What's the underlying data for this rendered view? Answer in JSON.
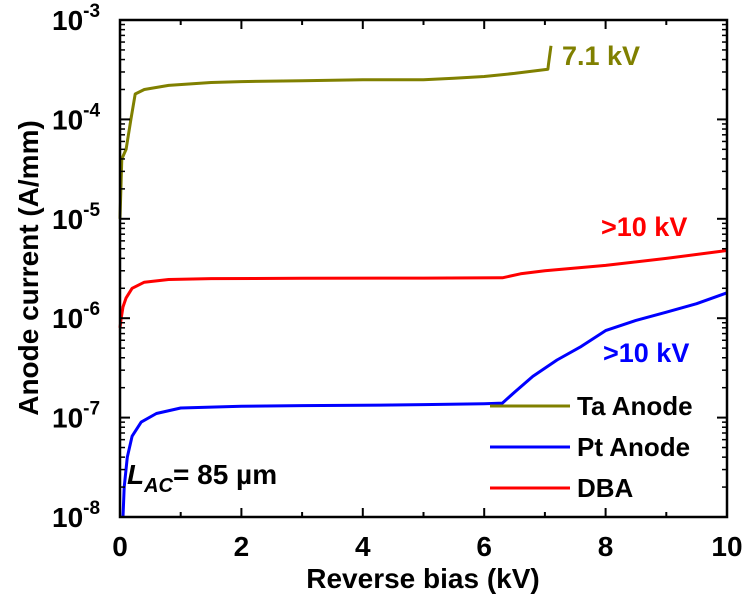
{
  "chart_data": {
    "type": "line",
    "title": "",
    "xlabel": "Reverse bias (kV)",
    "ylabel": "Anode current (A/mm)",
    "xlim": [
      0,
      10
    ],
    "ylim": [
      1e-08,
      0.001
    ],
    "y_scale": "log",
    "grid": false,
    "legend_position": "bottom-right",
    "x_ticks": [
      "0",
      "2",
      "4",
      "6",
      "8",
      "10"
    ],
    "y_ticks": [
      {
        "base": "10",
        "exp": "-8"
      },
      {
        "base": "10",
        "exp": "-7"
      },
      {
        "base": "10",
        "exp": "-6"
      },
      {
        "base": "10",
        "exp": "-5"
      },
      {
        "base": "10",
        "exp": "-4"
      },
      {
        "base": "10",
        "exp": "-3"
      }
    ],
    "series": [
      {
        "name": "Ta Anode",
        "color": "#808000",
        "points": [
          [
            0.0,
            1e-05
          ],
          [
            0.03,
            4e-05
          ],
          [
            0.1,
            5e-05
          ],
          [
            0.18,
            0.0001
          ],
          [
            0.25,
            0.00018
          ],
          [
            0.4,
            0.0002
          ],
          [
            0.8,
            0.00022
          ],
          [
            1.5,
            0.000235
          ],
          [
            2.0,
            0.00024
          ],
          [
            3.0,
            0.000245
          ],
          [
            4.0,
            0.00025
          ],
          [
            5.0,
            0.00025
          ],
          [
            5.5,
            0.00026
          ],
          [
            6.0,
            0.00027
          ],
          [
            6.5,
            0.00029
          ],
          [
            7.05,
            0.00032
          ],
          [
            7.06,
            0.00036
          ],
          [
            7.08,
            0.00045
          ],
          [
            7.1,
            0.00055
          ]
        ]
      },
      {
        "name": "Pt Anode",
        "color": "#0000ff",
        "points": [
          [
            0.05,
            1e-08
          ],
          [
            0.07,
            2e-08
          ],
          [
            0.12,
            4e-08
          ],
          [
            0.2,
            6.5e-08
          ],
          [
            0.35,
            9e-08
          ],
          [
            0.6,
            1.1e-07
          ],
          [
            1.0,
            1.25e-07
          ],
          [
            2.0,
            1.3e-07
          ],
          [
            3.0,
            1.32e-07
          ],
          [
            4.0,
            1.33e-07
          ],
          [
            5.0,
            1.35e-07
          ],
          [
            6.0,
            1.38e-07
          ],
          [
            6.3,
            1.4e-07
          ],
          [
            6.5,
            1.8e-07
          ],
          [
            6.8,
            2.6e-07
          ],
          [
            7.2,
            3.8e-07
          ],
          [
            7.6,
            5.2e-07
          ],
          [
            8.0,
            7.5e-07
          ],
          [
            8.5,
            9.5e-07
          ],
          [
            9.0,
            1.15e-06
          ],
          [
            9.5,
            1.4e-06
          ],
          [
            10.0,
            1.8e-06
          ]
        ]
      },
      {
        "name": "DBA",
        "color": "#ff0000",
        "points": [
          [
            0.0,
            8e-07
          ],
          [
            0.02,
            1e-06
          ],
          [
            0.05,
            1.3e-06
          ],
          [
            0.1,
            1.6e-06
          ],
          [
            0.2,
            2e-06
          ],
          [
            0.4,
            2.3e-06
          ],
          [
            0.8,
            2.45e-06
          ],
          [
            1.5,
            2.5e-06
          ],
          [
            3.0,
            2.52e-06
          ],
          [
            5.0,
            2.53e-06
          ],
          [
            6.3,
            2.55e-06
          ],
          [
            6.6,
            2.8e-06
          ],
          [
            7.0,
            3e-06
          ],
          [
            8.0,
            3.4e-06
          ],
          [
            9.0,
            4e-06
          ],
          [
            10.0,
            4.8e-06
          ]
        ]
      }
    ],
    "annotations": [
      {
        "text": "7.1 kV",
        "color": "#808000"
      },
      {
        "text": ">10 kV",
        "color": "#ff0000"
      },
      {
        "text": ">10 kV",
        "color": "#0000ff"
      }
    ],
    "inset_label": {
      "main": "L",
      "sub": "AC",
      "rest": "= 85 µm"
    }
  }
}
